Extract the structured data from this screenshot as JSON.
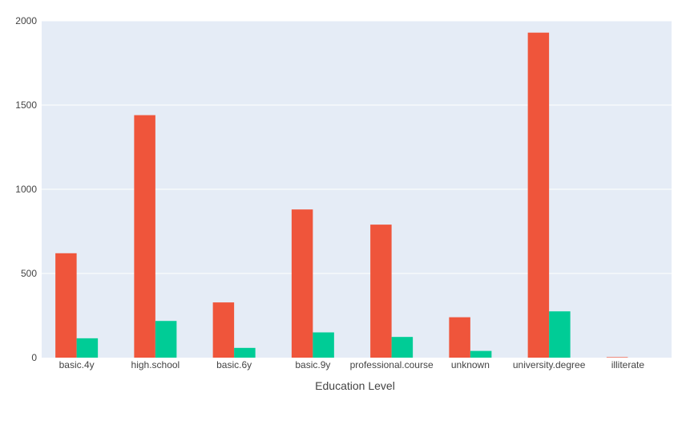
{
  "chart_data": {
    "type": "bar",
    "title": "",
    "xlabel": "Education Level",
    "ylabel": "",
    "categories": [
      "basic.4y",
      "high.school",
      "basic.6y",
      "basic.9y",
      "professional.course",
      "unknown",
      "university.degree",
      "illiterate"
    ],
    "series": [
      {
        "color": "#EF553B",
        "values": [
          620,
          1440,
          328,
          880,
          790,
          240,
          1930,
          3
        ]
      },
      {
        "color": "#00CC96",
        "values": [
          115,
          218,
          58,
          150,
          123,
          40,
          275,
          0
        ]
      }
    ],
    "ylim": [
      0,
      2000
    ],
    "yticks": [
      0,
      500,
      1000,
      1500,
      2000
    ],
    "grid": true,
    "legend": "none",
    "plot_background": "#E5ECF6",
    "grid_color": "#ffffff"
  }
}
